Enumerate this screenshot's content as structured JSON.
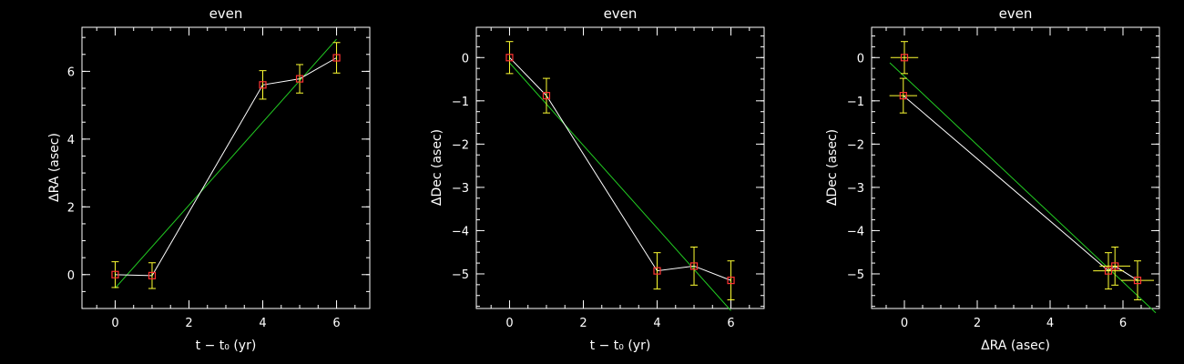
{
  "chart_data": [
    {
      "type": "scatter",
      "title": "even",
      "xlabel": "t − t₀ (yr)",
      "ylabel": "ΔRA (asec)",
      "xlim": [
        -0.9,
        6.9
      ],
      "ylim": [
        -1.0,
        7.3
      ],
      "xticks": [
        0,
        2,
        4,
        6
      ],
      "yticks": [
        0,
        2,
        4,
        6
      ],
      "x_minor_step": 0.5,
      "y_minor_step": 0.5,
      "points": [
        {
          "x": 0,
          "y": 0.0,
          "yerr": 0.38
        },
        {
          "x": 1,
          "y": -0.03,
          "yerr": 0.38
        },
        {
          "x": 4,
          "y": 5.6,
          "yerr": 0.42
        },
        {
          "x": 5,
          "y": 5.78,
          "yerr": 0.42
        },
        {
          "x": 6,
          "y": 6.4,
          "yerr": 0.45
        }
      ],
      "fit": {
        "x": [
          0.0,
          6.0
        ],
        "y": [
          -0.4,
          6.95
        ]
      },
      "colors": {
        "marker": "#ff3333",
        "errorbar": "#ffff33",
        "connect": "#ffffff",
        "fit": "#22cc22"
      }
    },
    {
      "type": "scatter",
      "title": "even",
      "xlabel": "t − t₀ (yr)",
      "ylabel": "ΔDec (asec)",
      "xlim": [
        -0.9,
        6.9
      ],
      "ylim": [
        -5.8,
        0.7
      ],
      "xticks": [
        0,
        2,
        4,
        6
      ],
      "yticks": [
        0,
        -1,
        -2,
        -3,
        -4,
        -5
      ],
      "x_minor_step": 0.5,
      "y_minor_step": 0.25,
      "points": [
        {
          "x": 0,
          "y": 0.0,
          "yerr": 0.37
        },
        {
          "x": 1,
          "y": -0.88,
          "yerr": 0.4
        },
        {
          "x": 4,
          "y": -4.93,
          "yerr": 0.42
        },
        {
          "x": 5,
          "y": -4.82,
          "yerr": 0.44
        },
        {
          "x": 6,
          "y": -5.15,
          "yerr": 0.45
        }
      ],
      "fit": {
        "x": [
          0.0,
          6.0
        ],
        "y": [
          -0.12,
          -5.85
        ]
      },
      "colors": {
        "marker": "#ff3333",
        "errorbar": "#ffff33",
        "connect": "#ffffff",
        "fit": "#22cc22"
      }
    },
    {
      "type": "scatter",
      "title": "even",
      "xlabel": "ΔRA (asec)",
      "ylabel": "ΔDec (asec)",
      "xlim": [
        -0.9,
        7.0
      ],
      "ylim": [
        -5.8,
        0.7
      ],
      "xticks": [
        0,
        2,
        4,
        6
      ],
      "yticks": [
        0,
        -1,
        -2,
        -3,
        -4,
        -5
      ],
      "x_minor_step": 0.5,
      "y_minor_step": 0.25,
      "points": [
        {
          "x": 0.0,
          "y": 0.0,
          "xerr": 0.38,
          "yerr": 0.37
        },
        {
          "x": -0.03,
          "y": -0.88,
          "xerr": 0.38,
          "yerr": 0.4
        },
        {
          "x": 5.6,
          "y": -4.93,
          "xerr": 0.42,
          "yerr": 0.42
        },
        {
          "x": 5.78,
          "y": -4.82,
          "xerr": 0.42,
          "yerr": 0.44
        },
        {
          "x": 6.4,
          "y": -5.15,
          "xerr": 0.45,
          "yerr": 0.45
        }
      ],
      "connect_order": [
        1,
        2,
        3,
        4
      ],
      "fit": {
        "x": [
          -0.4,
          6.9
        ],
        "y": [
          -0.12,
          -5.9
        ]
      },
      "colors": {
        "marker": "#ff3333",
        "errorbar": "#ffff33",
        "connect": "#ffffff",
        "fit": "#22cc22"
      }
    }
  ]
}
